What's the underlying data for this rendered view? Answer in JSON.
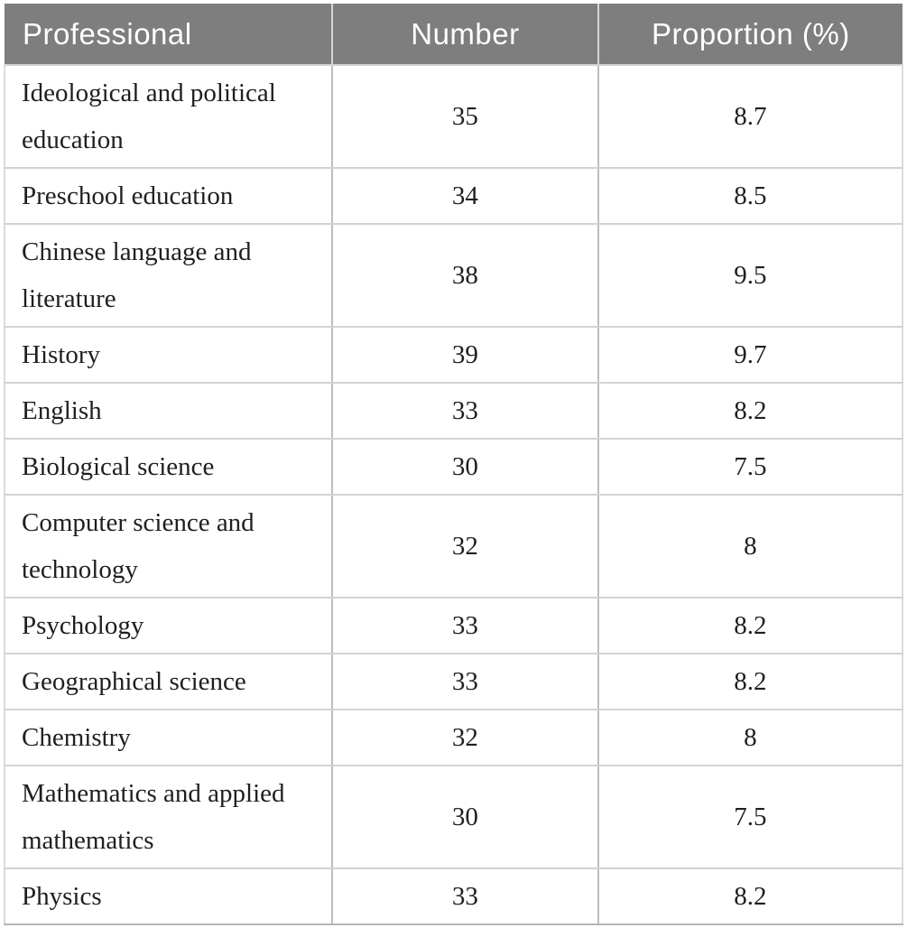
{
  "table": {
    "name": "professional-distribution-table",
    "columns": [
      {
        "label": "Professional",
        "align": "left"
      },
      {
        "label": "Number",
        "align": "center"
      },
      {
        "label": "Proportion (%)",
        "align": "center"
      }
    ],
    "rows": [
      {
        "professional": "Ideological and political education",
        "number": "35",
        "proportion": "8.7"
      },
      {
        "professional": "Preschool education",
        "number": "34",
        "proportion": "8.5"
      },
      {
        "professional": "Chinese language and literature",
        "number": "38",
        "proportion": "9.5"
      },
      {
        "professional": "History",
        "number": "39",
        "proportion": "9.7"
      },
      {
        "professional": "English",
        "number": "33",
        "proportion": "8.2"
      },
      {
        "professional": "Biological science",
        "number": "30",
        "proportion": "7.5"
      },
      {
        "professional": "Computer science and technology",
        "number": "32",
        "proportion": "8"
      },
      {
        "professional": "Psychology",
        "number": "33",
        "proportion": "8.2"
      },
      {
        "professional": "Geographical science",
        "number": "33",
        "proportion": "8.2"
      },
      {
        "professional": "Chemistry",
        "number": "32",
        "proportion": "8"
      },
      {
        "professional": "Mathematics and applied mathematics",
        "number": "30",
        "proportion": "7.5"
      },
      {
        "professional": "Physics",
        "number": "33",
        "proportion": "8.2"
      }
    ]
  },
  "colors": {
    "header_bg": "#7e7e7e",
    "header_text": "#ffffff",
    "body_text": "#1f1f1f",
    "border_horizontal": "#d2d2d2",
    "border_vertical": "#bdbdbd"
  },
  "chart_data": {
    "type": "table",
    "title": "",
    "columns": [
      "Professional",
      "Number",
      "Proportion (%)"
    ],
    "rows": [
      [
        "Ideological and political education",
        35,
        8.7
      ],
      [
        "Preschool education",
        34,
        8.5
      ],
      [
        "Chinese language and literature",
        38,
        9.5
      ],
      [
        "History",
        39,
        9.7
      ],
      [
        "English",
        33,
        8.2
      ],
      [
        "Biological science",
        30,
        7.5
      ],
      [
        "Computer science and technology",
        32,
        8
      ],
      [
        "Psychology",
        33,
        8.2
      ],
      [
        "Geographical science",
        33,
        8.2
      ],
      [
        "Chemistry",
        32,
        8
      ],
      [
        "Mathematics and applied mathematics",
        30,
        7.5
      ],
      [
        "Physics",
        33,
        8.2
      ]
    ]
  }
}
